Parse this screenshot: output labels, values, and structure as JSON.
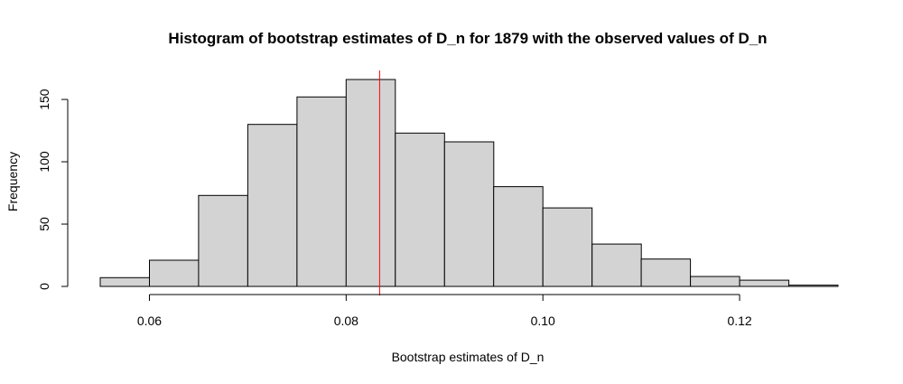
{
  "chart_data": {
    "type": "bar",
    "title": "Histogram of bootstrap estimates of D_n for 1879 with the observed values of D_n",
    "xlabel": "Bootstrap estimates of D_n",
    "ylabel": "Frequency",
    "bin_edges": [
      0.055,
      0.06,
      0.065,
      0.07,
      0.075,
      0.08,
      0.085,
      0.09,
      0.095,
      0.1,
      0.105,
      0.11,
      0.115,
      0.12,
      0.125,
      0.13
    ],
    "values": [
      7,
      21,
      73,
      130,
      152,
      166,
      123,
      116,
      80,
      63,
      34,
      22,
      8,
      5,
      1
    ],
    "xlim": [
      0.055,
      0.13
    ],
    "ylim": [
      0,
      166
    ],
    "x_ticks": [
      0.06,
      0.08,
      0.1,
      0.12
    ],
    "x_tick_labels": [
      "0.06",
      "0.08",
      "0.10",
      "0.12"
    ],
    "y_ticks": [
      0,
      50,
      100,
      150
    ],
    "y_tick_labels": [
      "0",
      "50",
      "100",
      "150"
    ],
    "observed_value": 0.0834,
    "observed_line_color": "#ff0000",
    "bar_fill": "#d3d3d3",
    "grid": false
  }
}
